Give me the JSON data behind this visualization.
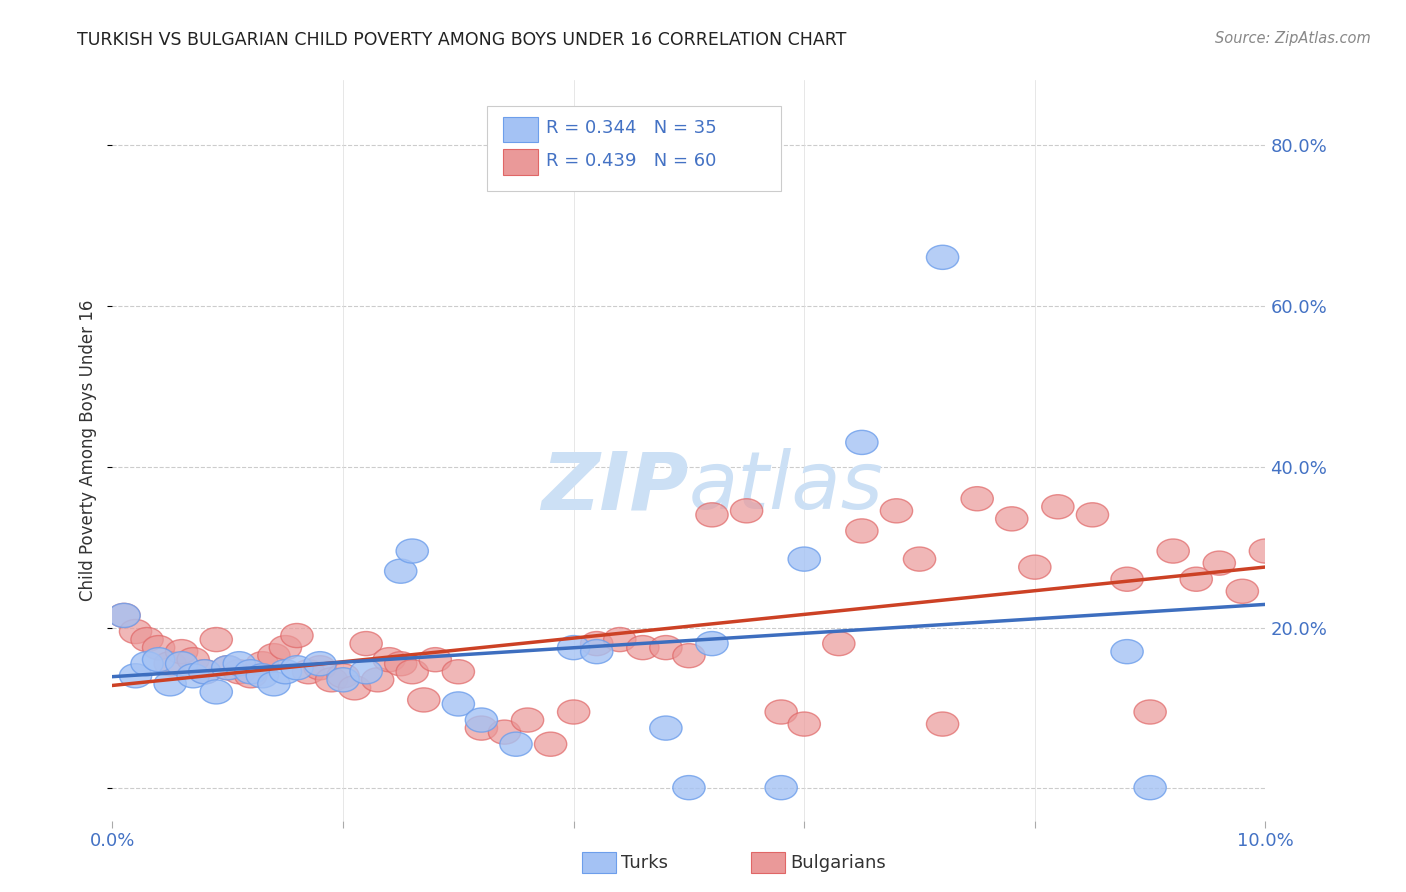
{
  "title": "TURKISH VS BULGARIAN CHILD POVERTY AMONG BOYS UNDER 16 CORRELATION CHART",
  "source": "Source: ZipAtlas.com",
  "ylabel": "Child Poverty Among Boys Under 16",
  "legend_turks": "Turks",
  "legend_bulgarians": "Bulgarians",
  "R_turks": 0.344,
  "N_turks": 35,
  "R_bulgarians": 0.439,
  "N_bulgarians": 60,
  "color_turks": "#a4c2f4",
  "color_turks_edge": "#6d9eeb",
  "color_bulgarians": "#ea9999",
  "color_bulgarians_edge": "#e06666",
  "color_turks_line": "#3d6ebf",
  "color_bulgarians_line": "#cc4125",
  "color_text_blue": "#4472c4",
  "watermark_color": "#cce0f5",
  "background": "#ffffff",
  "xmin": 0.0,
  "xmax": 0.1,
  "ymin": -0.04,
  "ymax": 0.88,
  "yticks": [
    0.0,
    0.2,
    0.4,
    0.6,
    0.8
  ],
  "ytick_labels": [
    "",
    "20.0%",
    "40.0%",
    "60.0%",
    "80.0%"
  ],
  "xticks": [
    0.0,
    0.02,
    0.04,
    0.06,
    0.08,
    0.1
  ],
  "xtick_labels": [
    "0.0%",
    "",
    "",
    "",
    "",
    "10.0%"
  ],
  "turks_x": [
    0.001,
    0.002,
    0.003,
    0.004,
    0.005,
    0.006,
    0.007,
    0.008,
    0.009,
    0.01,
    0.011,
    0.012,
    0.013,
    0.014,
    0.015,
    0.016,
    0.018,
    0.02,
    0.022,
    0.025,
    0.026,
    0.03,
    0.032,
    0.035,
    0.04,
    0.042,
    0.048,
    0.05,
    0.052,
    0.058,
    0.06,
    0.065,
    0.072,
    0.088,
    0.09
  ],
  "turks_y": [
    0.215,
    0.14,
    0.155,
    0.16,
    0.13,
    0.155,
    0.14,
    0.145,
    0.12,
    0.15,
    0.155,
    0.145,
    0.14,
    0.13,
    0.145,
    0.15,
    0.155,
    0.135,
    0.145,
    0.27,
    0.295,
    0.105,
    0.085,
    0.055,
    0.175,
    0.17,
    0.075,
    0.001,
    0.18,
    0.001,
    0.285,
    0.43,
    0.66,
    0.17,
    0.001
  ],
  "bulgarians_x": [
    0.001,
    0.002,
    0.003,
    0.004,
    0.005,
    0.006,
    0.007,
    0.008,
    0.009,
    0.01,
    0.011,
    0.012,
    0.013,
    0.014,
    0.015,
    0.016,
    0.017,
    0.018,
    0.019,
    0.02,
    0.021,
    0.022,
    0.023,
    0.024,
    0.025,
    0.026,
    0.027,
    0.028,
    0.03,
    0.032,
    0.034,
    0.036,
    0.038,
    0.04,
    0.042,
    0.044,
    0.046,
    0.048,
    0.05,
    0.052,
    0.055,
    0.058,
    0.06,
    0.063,
    0.065,
    0.068,
    0.07,
    0.072,
    0.075,
    0.078,
    0.08,
    0.082,
    0.085,
    0.088,
    0.09,
    0.092,
    0.094,
    0.096,
    0.098,
    0.1
  ],
  "bulgarians_y": [
    0.215,
    0.195,
    0.185,
    0.175,
    0.155,
    0.17,
    0.16,
    0.145,
    0.185,
    0.15,
    0.145,
    0.14,
    0.155,
    0.165,
    0.175,
    0.19,
    0.145,
    0.15,
    0.135,
    0.14,
    0.125,
    0.18,
    0.135,
    0.16,
    0.155,
    0.145,
    0.11,
    0.16,
    0.145,
    0.075,
    0.07,
    0.085,
    0.055,
    0.095,
    0.18,
    0.185,
    0.175,
    0.175,
    0.165,
    0.34,
    0.345,
    0.095,
    0.08,
    0.18,
    0.32,
    0.345,
    0.285,
    0.08,
    0.36,
    0.335,
    0.275,
    0.35,
    0.34,
    0.26,
    0.095,
    0.295,
    0.26,
    0.28,
    0.245,
    0.295
  ]
}
